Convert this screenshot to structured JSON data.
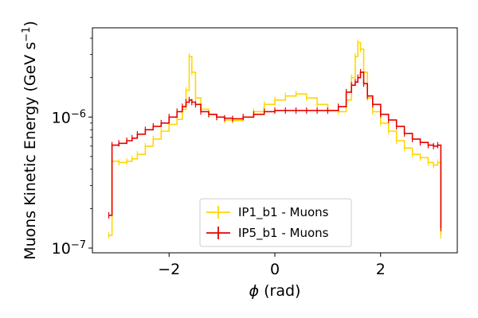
{
  "chart_data": {
    "type": "line",
    "xlabel_symbol": "ϕ",
    "xlabel_unit": " (rad)",
    "ylabel_main": "Muons Kinetic Energy (GeV s",
    "ylabel_sup": "−1",
    "ylabel_close": ")",
    "xlim": [
      -3.45,
      3.45
    ],
    "ylim": [
      9.2e-08,
      4.8e-06
    ],
    "yscale": "log",
    "x_ticks": [
      -2,
      0,
      2
    ],
    "x_tick_labels": [
      "−2",
      "0",
      "2"
    ],
    "y_ticks": [
      {
        "value": 1e-07,
        "base": "10",
        "exp": "−7"
      },
      {
        "value": 1e-06,
        "base": "10",
        "exp": "−6"
      }
    ],
    "grid": false,
    "legend_position": "lower-center",
    "series": [
      {
        "name": "IP1_b1 - Muons",
        "color": "#FFD700",
        "points": [
          [
            -3.14,
            1.25e-07
          ],
          [
            -3.08,
            4.6e-07
          ],
          [
            -2.95,
            4.5e-07
          ],
          [
            -2.8,
            4.6e-07
          ],
          [
            -2.7,
            4.8e-07
          ],
          [
            -2.6,
            5.2e-07
          ],
          [
            -2.45,
            6e-07
          ],
          [
            -2.3,
            6.8e-07
          ],
          [
            -2.15,
            7.8e-07
          ],
          [
            -2.0,
            8.8e-07
          ],
          [
            -1.85,
            9.6e-07
          ],
          [
            -1.75,
            1.15e-06
          ],
          [
            -1.68,
            1.6e-06
          ],
          [
            -1.62,
            2.9e-06
          ],
          [
            -1.57,
            2.2e-06
          ],
          [
            -1.5,
            1.4e-06
          ],
          [
            -1.4,
            1.15e-06
          ],
          [
            -1.25,
            1.05e-06
          ],
          [
            -1.1,
            1e-06
          ],
          [
            -0.95,
            9.5e-07
          ],
          [
            -0.8,
            9.4e-07
          ],
          [
            -0.6,
            1e-06
          ],
          [
            -0.4,
            1.1e-06
          ],
          [
            -0.2,
            1.25e-06
          ],
          [
            0.0,
            1.35e-06
          ],
          [
            0.2,
            1.45e-06
          ],
          [
            0.4,
            1.5e-06
          ],
          [
            0.6,
            1.4e-06
          ],
          [
            0.8,
            1.25e-06
          ],
          [
            1.0,
            1.12e-06
          ],
          [
            1.2,
            1.1e-06
          ],
          [
            1.35,
            1.35e-06
          ],
          [
            1.45,
            2e-06
          ],
          [
            1.52,
            2.9e-06
          ],
          [
            1.57,
            3.7e-06
          ],
          [
            1.62,
            3.3e-06
          ],
          [
            1.68,
            2.2e-06
          ],
          [
            1.75,
            1.4e-06
          ],
          [
            1.85,
            1.1e-06
          ],
          [
            2.0,
            9e-07
          ],
          [
            2.15,
            7.8e-07
          ],
          [
            2.3,
            6.6e-07
          ],
          [
            2.45,
            5.8e-07
          ],
          [
            2.6,
            5.2e-07
          ],
          [
            2.75,
            4.9e-07
          ],
          [
            2.9,
            4.5e-07
          ],
          [
            3.0,
            4.3e-07
          ],
          [
            3.08,
            4.5e-07
          ],
          [
            3.14,
            1.25e-07
          ]
        ]
      },
      {
        "name": "IP5_b1 - Muons",
        "color": "#E60000",
        "points": [
          [
            -3.14,
            1.78e-07
          ],
          [
            -3.08,
            6.1e-07
          ],
          [
            -2.95,
            6.3e-07
          ],
          [
            -2.8,
            6.6e-07
          ],
          [
            -2.7,
            6.9e-07
          ],
          [
            -2.6,
            7.4e-07
          ],
          [
            -2.45,
            8e-07
          ],
          [
            -2.3,
            8.5e-07
          ],
          [
            -2.15,
            9e-07
          ],
          [
            -2.0,
            1e-06
          ],
          [
            -1.85,
            1.1e-06
          ],
          [
            -1.75,
            1.2e-06
          ],
          [
            -1.68,
            1.3e-06
          ],
          [
            -1.62,
            1.35e-06
          ],
          [
            -1.57,
            1.3e-06
          ],
          [
            -1.5,
            1.25e-06
          ],
          [
            -1.4,
            1.1e-06
          ],
          [
            -1.25,
            1.05e-06
          ],
          [
            -1.1,
            1e-06
          ],
          [
            -0.95,
            9.8e-07
          ],
          [
            -0.8,
            9.7e-07
          ],
          [
            -0.6,
            1e-06
          ],
          [
            -0.4,
            1.05e-06
          ],
          [
            -0.2,
            1.1e-06
          ],
          [
            0.0,
            1.12e-06
          ],
          [
            0.2,
            1.12e-06
          ],
          [
            0.4,
            1.12e-06
          ],
          [
            0.6,
            1.12e-06
          ],
          [
            0.8,
            1.12e-06
          ],
          [
            1.0,
            1.12e-06
          ],
          [
            1.2,
            1.2e-06
          ],
          [
            1.35,
            1.55e-06
          ],
          [
            1.45,
            1.75e-06
          ],
          [
            1.52,
            1.85e-06
          ],
          [
            1.57,
            2e-06
          ],
          [
            1.62,
            2.2e-06
          ],
          [
            1.68,
            1.8e-06
          ],
          [
            1.75,
            1.45e-06
          ],
          [
            1.85,
            1.25e-06
          ],
          [
            2.0,
            1.05e-06
          ],
          [
            2.15,
            9.5e-07
          ],
          [
            2.3,
            8.5e-07
          ],
          [
            2.45,
            7.5e-07
          ],
          [
            2.6,
            6.8e-07
          ],
          [
            2.75,
            6.4e-07
          ],
          [
            2.9,
            6.1e-07
          ],
          [
            3.0,
            6e-07
          ],
          [
            3.08,
            6.1e-07
          ],
          [
            3.14,
            1.42e-07
          ]
        ]
      }
    ]
  }
}
